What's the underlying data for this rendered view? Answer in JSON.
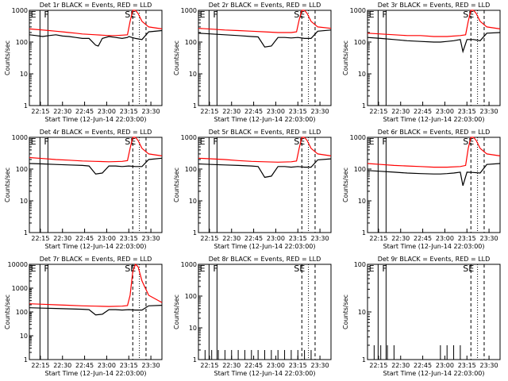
{
  "chart_data": [
    {
      "type": "line",
      "title": "Det 1r BLACK = Events, RED = LLD",
      "xlabel": "Start Time (12-Jun-14 22:03:00)",
      "ylabel": "Counts/sec",
      "yscale": "log",
      "ylim": [
        1,
        1000
      ],
      "y_tick_labels": [
        "1",
        "10",
        "100",
        "1000"
      ],
      "x_tick_labels": [
        "22:15",
        "22:30",
        "22:45",
        "23:00",
        "23:15",
        "23:30"
      ],
      "markers": [
        "E",
        "F",
        "SE"
      ],
      "series": [
        {
          "name": "Events",
          "color": "#000000",
          "x": [
            0,
            0.05,
            0.1,
            0.15,
            0.2,
            0.25,
            0.3,
            0.35,
            0.4,
            0.45,
            0.5,
            0.52,
            0.55,
            0.6,
            0.65,
            0.7,
            0.74,
            0.75,
            0.8,
            0.85,
            0.9,
            1
          ],
          "y": [
            170,
            160,
            150,
            160,
            170,
            155,
            150,
            140,
            130,
            130,
            80,
            75,
            130,
            150,
            140,
            130,
            140,
            150,
            130,
            120,
            210,
            230
          ]
        },
        {
          "name": "LLD",
          "color": "#ff0000",
          "x": [
            0,
            0.05,
            0.1,
            0.15,
            0.2,
            0.25,
            0.3,
            0.35,
            0.4,
            0.45,
            0.5,
            0.55,
            0.6,
            0.65,
            0.7,
            0.74,
            0.76,
            0.78,
            0.8,
            0.82,
            0.85,
            0.9,
            1
          ],
          "y": [
            260,
            250,
            240,
            230,
            220,
            210,
            200,
            190,
            180,
            175,
            170,
            165,
            160,
            160,
            165,
            170,
            450,
            1000,
            1000,
            800,
            450,
            300,
            260
          ]
        }
      ]
    },
    {
      "type": "line",
      "title": "Det 2r BLACK = Events, RED = LLD",
      "xlabel": "Start Time (12-Jun-14 22:03:00)",
      "ylabel": "Counts/sec",
      "yscale": "log",
      "ylim": [
        1,
        1000
      ],
      "y_tick_labels": [
        "1",
        "10",
        "100",
        "1000"
      ],
      "x_tick_labels": [
        "22:15",
        "22:30",
        "22:45",
        "23:00",
        "23:15",
        "23:30"
      ],
      "markers": [
        "E",
        "F",
        "SE"
      ],
      "series": [
        {
          "name": "Events",
          "color": "#000000",
          "x": [
            0,
            0.1,
            0.2,
            0.3,
            0.4,
            0.45,
            0.5,
            0.55,
            0.6,
            0.65,
            0.7,
            0.75,
            0.8,
            0.85,
            0.9,
            1
          ],
          "y": [
            190,
            180,
            170,
            160,
            150,
            145,
            70,
            75,
            140,
            140,
            135,
            140,
            130,
            130,
            220,
            240
          ]
        },
        {
          "name": "LLD",
          "color": "#ff0000",
          "x": [
            0,
            0.1,
            0.2,
            0.3,
            0.4,
            0.5,
            0.6,
            0.7,
            0.74,
            0.76,
            0.78,
            0.8,
            0.82,
            0.85,
            0.9,
            1
          ],
          "y": [
            270,
            255,
            240,
            230,
            220,
            210,
            200,
            200,
            210,
            500,
            1000,
            1000,
            800,
            450,
            300,
            270
          ]
        }
      ]
    },
    {
      "type": "line",
      "title": "Det 3r BLACK = Events, RED = LLD",
      "xlabel": "Start Time (12-Jun-14 22:03:00)",
      "ylabel": "Counts/sec",
      "yscale": "log",
      "ylim": [
        1,
        1000
      ],
      "y_tick_labels": [
        "1",
        "10",
        "100",
        "1000"
      ],
      "x_tick_labels": [
        "22:15",
        "22:30",
        "22:45",
        "23:00",
        "23:15",
        "23:30"
      ],
      "markers": [
        "E",
        "F",
        "SE"
      ],
      "series": [
        {
          "name": "Events",
          "color": "#000000",
          "x": [
            0,
            0.1,
            0.2,
            0.3,
            0.4,
            0.5,
            0.55,
            0.6,
            0.65,
            0.7,
            0.72,
            0.75,
            0.8,
            0.85,
            0.9,
            1
          ],
          "y": [
            140,
            130,
            120,
            110,
            105,
            100,
            100,
            105,
            110,
            120,
            50,
            120,
            120,
            110,
            190,
            200
          ]
        },
        {
          "name": "LLD",
          "color": "#ff0000",
          "x": [
            0,
            0.1,
            0.2,
            0.3,
            0.4,
            0.5,
            0.6,
            0.7,
            0.74,
            0.76,
            0.78,
            0.8,
            0.82,
            0.85,
            0.9,
            1
          ],
          "y": [
            190,
            180,
            170,
            160,
            160,
            150,
            150,
            160,
            170,
            450,
            1000,
            1000,
            800,
            450,
            300,
            260
          ]
        }
      ]
    },
    {
      "type": "line",
      "title": "Det 4r BLACK = Events, RED = LLD",
      "xlabel": "Start Time (12-Jun-14 22:03:00)",
      "ylabel": "Counts/sec",
      "yscale": "log",
      "ylim": [
        1,
        1000
      ],
      "y_tick_labels": [
        "1",
        "10",
        "100",
        "1000"
      ],
      "x_tick_labels": [
        "22:15",
        "22:30",
        "22:45",
        "23:00",
        "23:15",
        "23:30"
      ],
      "markers": [
        "E",
        "F",
        "SE"
      ],
      "series": [
        {
          "name": "Events",
          "color": "#000000",
          "x": [
            0,
            0.1,
            0.2,
            0.3,
            0.4,
            0.45,
            0.5,
            0.55,
            0.6,
            0.65,
            0.7,
            0.75,
            0.8,
            0.85,
            0.9,
            1
          ],
          "y": [
            150,
            145,
            140,
            135,
            130,
            125,
            70,
            75,
            125,
            125,
            120,
            125,
            120,
            120,
            200,
            220
          ]
        },
        {
          "name": "LLD",
          "color": "#ff0000",
          "x": [
            0,
            0.1,
            0.2,
            0.3,
            0.4,
            0.5,
            0.6,
            0.7,
            0.74,
            0.76,
            0.78,
            0.8,
            0.82,
            0.85,
            0.9,
            1
          ],
          "y": [
            230,
            215,
            200,
            190,
            180,
            175,
            170,
            175,
            185,
            450,
            1000,
            1000,
            800,
            450,
            300,
            260
          ]
        }
      ]
    },
    {
      "type": "line",
      "title": "Det 5r BLACK = Events, RED = LLD",
      "xlabel": "Start Time (12-Jun-14 22:03:00)",
      "ylabel": "Counts/sec",
      "yscale": "log",
      "ylim": [
        1,
        1000
      ],
      "y_tick_labels": [
        "1",
        "10",
        "100",
        "1000"
      ],
      "x_tick_labels": [
        "22:15",
        "22:30",
        "22:45",
        "23:00",
        "23:15",
        "23:30"
      ],
      "markers": [
        "E",
        "F",
        "SE"
      ],
      "series": [
        {
          "name": "Events",
          "color": "#000000",
          "x": [
            0,
            0.1,
            0.2,
            0.3,
            0.4,
            0.45,
            0.5,
            0.55,
            0.6,
            0.65,
            0.7,
            0.75,
            0.8,
            0.85,
            0.9,
            1
          ],
          "y": [
            145,
            140,
            135,
            130,
            125,
            120,
            55,
            60,
            120,
            120,
            115,
            120,
            115,
            115,
            195,
            210
          ]
        },
        {
          "name": "LLD",
          "color": "#ff0000",
          "x": [
            0,
            0.1,
            0.2,
            0.3,
            0.4,
            0.5,
            0.6,
            0.7,
            0.74,
            0.76,
            0.78,
            0.8,
            0.82,
            0.85,
            0.9,
            1
          ],
          "y": [
            220,
            210,
            200,
            185,
            175,
            170,
            165,
            170,
            180,
            450,
            1000,
            1000,
            800,
            450,
            300,
            260
          ]
        }
      ]
    },
    {
      "type": "line",
      "title": "Det 6r BLACK = Events, RED = LLD",
      "xlabel": "Start Time (12-Jun-14 22:03:00)",
      "ylabel": "Counts/sec",
      "yscale": "log",
      "ylim": [
        1,
        1000
      ],
      "y_tick_labels": [
        "1",
        "10",
        "100",
        "1000"
      ],
      "x_tick_labels": [
        "22:15",
        "22:30",
        "22:45",
        "23:00",
        "23:15",
        "23:30"
      ],
      "markers": [
        "E",
        "F",
        "SE"
      ],
      "series": [
        {
          "name": "Events",
          "color": "#000000",
          "x": [
            0,
            0.1,
            0.2,
            0.3,
            0.4,
            0.5,
            0.55,
            0.6,
            0.65,
            0.7,
            0.72,
            0.75,
            0.8,
            0.85,
            0.9,
            1
          ],
          "y": [
            90,
            85,
            80,
            75,
            72,
            70,
            70,
            72,
            75,
            80,
            30,
            80,
            78,
            75,
            140,
            150
          ]
        },
        {
          "name": "LLD",
          "color": "#ff0000",
          "x": [
            0,
            0.1,
            0.2,
            0.3,
            0.4,
            0.5,
            0.6,
            0.7,
            0.74,
            0.76,
            0.78,
            0.8,
            0.82,
            0.85,
            0.9,
            1
          ],
          "y": [
            150,
            140,
            130,
            125,
            120,
            115,
            115,
            120,
            130,
            450,
            1000,
            1000,
            800,
            450,
            300,
            260
          ]
        }
      ]
    },
    {
      "type": "line",
      "title": "Det 7r BLACK = Events, RED = LLD",
      "xlabel": "Start Time (12-Jun-14 22:03:00)",
      "ylabel": "Counts/sec",
      "yscale": "log",
      "ylim": [
        1,
        10000
      ],
      "y_tick_labels": [
        "1",
        "10",
        "100",
        "1000",
        "10000"
      ],
      "x_tick_labels": [
        "22:15",
        "22:30",
        "22:45",
        "23:00",
        "23:15",
        "23:30"
      ],
      "markers": [
        "E",
        "F",
        "SE"
      ],
      "series": [
        {
          "name": "Events",
          "color": "#000000",
          "x": [
            0,
            0.1,
            0.2,
            0.3,
            0.4,
            0.45,
            0.5,
            0.55,
            0.6,
            0.65,
            0.7,
            0.75,
            0.8,
            0.85,
            0.9,
            1
          ],
          "y": [
            150,
            145,
            140,
            135,
            130,
            125,
            75,
            80,
            125,
            125,
            120,
            125,
            120,
            120,
            180,
            190
          ]
        },
        {
          "name": "LLD",
          "color": "#ff0000",
          "x": [
            0,
            0.1,
            0.2,
            0.3,
            0.4,
            0.5,
            0.6,
            0.7,
            0.74,
            0.76,
            0.78,
            0.8,
            0.82,
            0.85,
            0.9,
            1
          ],
          "y": [
            220,
            210,
            200,
            190,
            180,
            175,
            170,
            175,
            185,
            500,
            5000,
            10000,
            8000,
            2000,
            500,
            250
          ]
        }
      ]
    },
    {
      "type": "line",
      "title": "Det 8r BLACK = Events, RED = LLD",
      "xlabel": "Start Time (12-Jun-14 22:03:00)",
      "ylabel": "Counts/sec",
      "yscale": "log",
      "ylim": [
        1,
        1000
      ],
      "y_tick_labels": [
        "1",
        "10",
        "100",
        "1000"
      ],
      "x_tick_labels": [
        "22:15",
        "22:30",
        "22:45",
        "23:00",
        "23:15",
        "23:30"
      ],
      "markers": [
        "E",
        "F",
        "SE"
      ],
      "series": [
        {
          "name": "Events",
          "color": "#000000",
          "style": "sparse",
          "x": [
            0.05,
            0.1,
            0.15,
            0.2,
            0.25,
            0.3,
            0.35,
            0.4,
            0.45,
            0.5,
            0.55,
            0.6,
            0.65,
            0.7,
            0.75,
            0.8,
            0.85
          ],
          "y": [
            2,
            2,
            2,
            2,
            2,
            2,
            2,
            2,
            2,
            2,
            2,
            2,
            2,
            2,
            2,
            2,
            2
          ]
        },
        {
          "name": "LLD",
          "color": "#ff0000",
          "x": [],
          "y": []
        }
      ]
    },
    {
      "type": "line",
      "title": "Det 9r BLACK = Events, RED = LLD",
      "xlabel": "Start Time (12-Jun-14 22:03:00)",
      "ylabel": "Counts/sec",
      "yscale": "log",
      "ylim": [
        1,
        100
      ],
      "y_tick_labels": [
        "1",
        "10",
        "100"
      ],
      "x_tick_labels": [
        "22:15",
        "22:30",
        "22:45",
        "23:00",
        "23:15",
        "23:30"
      ],
      "markers": [
        "E",
        "F",
        "SE"
      ],
      "series": [
        {
          "name": "Events",
          "color": "#000000",
          "style": "sparse",
          "x": [
            0.05,
            0.1,
            0.15,
            0.2,
            0.55,
            0.6,
            0.65,
            0.7
          ],
          "y": [
            2,
            2,
            2,
            2,
            2,
            2,
            2,
            2
          ]
        },
        {
          "name": "LLD",
          "color": "#ff0000",
          "x": [],
          "y": []
        }
      ]
    }
  ]
}
